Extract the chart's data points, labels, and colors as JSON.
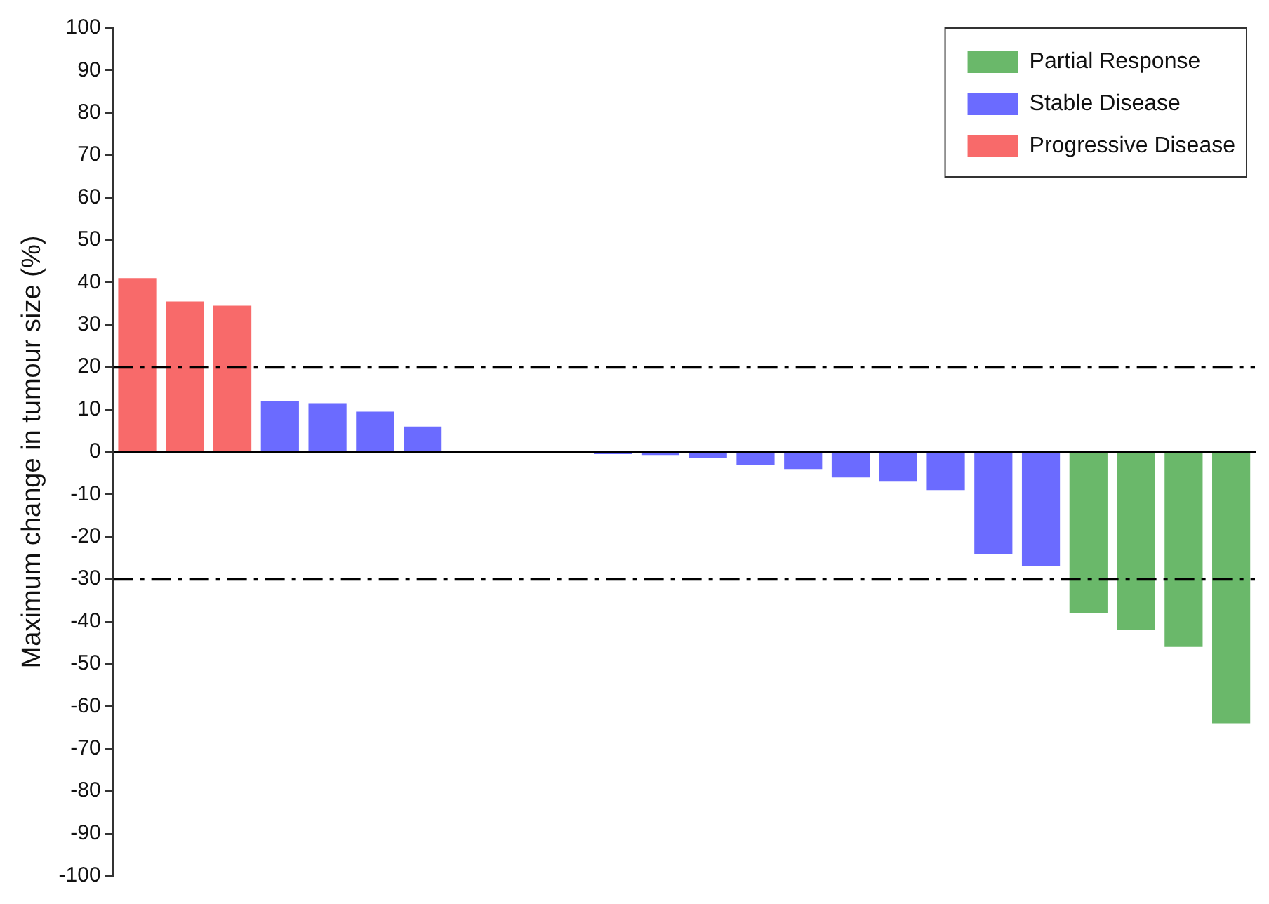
{
  "chart_data": {
    "type": "bar",
    "ylabel": "Maximum change in tumour size (%)",
    "categories": [
      null,
      null,
      null,
      null,
      null,
      null,
      null,
      null,
      null,
      null,
      null,
      null,
      null,
      null,
      null,
      null,
      null,
      null,
      null,
      null,
      null,
      null,
      null,
      null
    ],
    "series": [
      {
        "name": "Partial Response",
        "color": "#6ab86a",
        "values": [
          null,
          null,
          null,
          null,
          null,
          null,
          null,
          null,
          null,
          null,
          null,
          null,
          null,
          null,
          null,
          null,
          null,
          null,
          null,
          null,
          -38,
          -42,
          -46,
          -64
        ]
      },
      {
        "name": "Stable Disease",
        "color": "#6b6bff",
        "values": [
          null,
          null,
          null,
          12,
          11.5,
          9.5,
          6,
          0,
          0,
          0,
          -0.5,
          -0.7,
          -1.5,
          -3,
          -4,
          -6,
          -7,
          -9,
          -24,
          -27,
          null,
          null,
          null,
          null
        ]
      },
      {
        "name": "Progressive Disease",
        "color": "#f86a6a",
        "values": [
          41,
          35.5,
          34.5,
          null,
          null,
          null,
          null,
          null,
          null,
          null,
          null,
          null,
          null,
          null,
          null,
          null,
          null,
          null,
          null,
          null,
          null,
          null,
          null,
          null
        ]
      }
    ],
    "ylim": [
      -100,
      100
    ],
    "yticks": [
      -100,
      -90,
      -80,
      -70,
      -60,
      -50,
      -40,
      -30,
      -20,
      -10,
      0,
      10,
      20,
      30,
      40,
      50,
      60,
      70,
      80,
      90,
      100
    ],
    "ref_lines": [
      {
        "axis": "y",
        "value": 20,
        "color": "#000000",
        "line_style": "dashdot"
      },
      {
        "axis": "y",
        "value": -30,
        "color": "#000000",
        "line_style": "dashdot"
      }
    ],
    "grid": false,
    "legend": "top right",
    "tick_labels": "y"
  }
}
